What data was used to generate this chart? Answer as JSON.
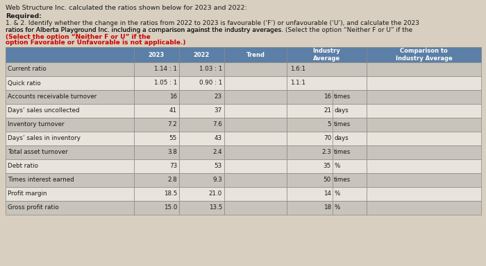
{
  "title_line1": "Web Structure Inc. calculated the ratios shown below for 2023 and 2022:",
  "required_label": "Required:",
  "body_text_1": "1. & 2. Identify whether the change in the ratios from 2022 to 2023 is favourable (‘F’) or unfavourable (‘U’), and calculate the 2023",
  "body_text_2": "ratios for Alberta Playground Inc. including a comparison against the industry averages. ",
  "highlight_text_1": "(Select the option “Neither F or U” if the",
  "highlight_text_2": "option Favorable or Unfavorable is not applicable.)",
  "col_headers": [
    "",
    "2023",
    "2022",
    "Trend",
    "Industry\nAverage",
    "Comparison to\nIndustry Average"
  ],
  "rows": [
    {
      "label": "Current ratio",
      "val2023": "1.14 : 1",
      "val2022": "1.03 : 1",
      "industry_num": "1.6:1",
      "unit": ""
    },
    {
      "label": "Quick ratio",
      "val2023": "1.05 : 1",
      "val2022": "0.90 : 1",
      "industry_num": "1.1:1",
      "unit": ""
    },
    {
      "label": "Accounts receivable turnover",
      "val2023": "16",
      "val2022": "23",
      "industry_num": "16",
      "unit": "times"
    },
    {
      "label": "Days’ sales uncollected",
      "val2023": "41",
      "val2022": "37",
      "industry_num": "21",
      "unit": "days"
    },
    {
      "label": "Inventory turnover",
      "val2023": "7.2",
      "val2022": "7.6",
      "industry_num": "5",
      "unit": "times"
    },
    {
      "label": "Days’ sales in inventory",
      "val2023": "55",
      "val2022": "43",
      "industry_num": "70",
      "unit": "days"
    },
    {
      "label": "Total asset turnover",
      "val2023": "3.8",
      "val2022": "2.4",
      "industry_num": "2.3",
      "unit": "times"
    },
    {
      "label": "Debt ratio",
      "val2023": "73",
      "val2022": "53",
      "industry_num": "35",
      "unit": "%"
    },
    {
      "label": "Times interest earned",
      "val2023": "2.8",
      "val2022": "9.3",
      "industry_num": "50",
      "unit": "times"
    },
    {
      "label": "Profit margin",
      "val2023": "18.5",
      "val2022": "21.0",
      "industry_num": "14",
      "unit": "%"
    },
    {
      "label": "Gross profit ratio",
      "val2023": "15.0",
      "val2022": "13.5",
      "industry_num": "18",
      "unit": "%"
    }
  ],
  "header_bg": "#5b7fa6",
  "header_text_color": "#ffffff",
  "row_bg_light": "#e8e4dc",
  "row_bg_mid": "#c8c4bc",
  "border_color": "#888888",
  "text_color": "#1a1a1a",
  "highlight_color": "#cc0000",
  "background_color": "#d8cfc0"
}
